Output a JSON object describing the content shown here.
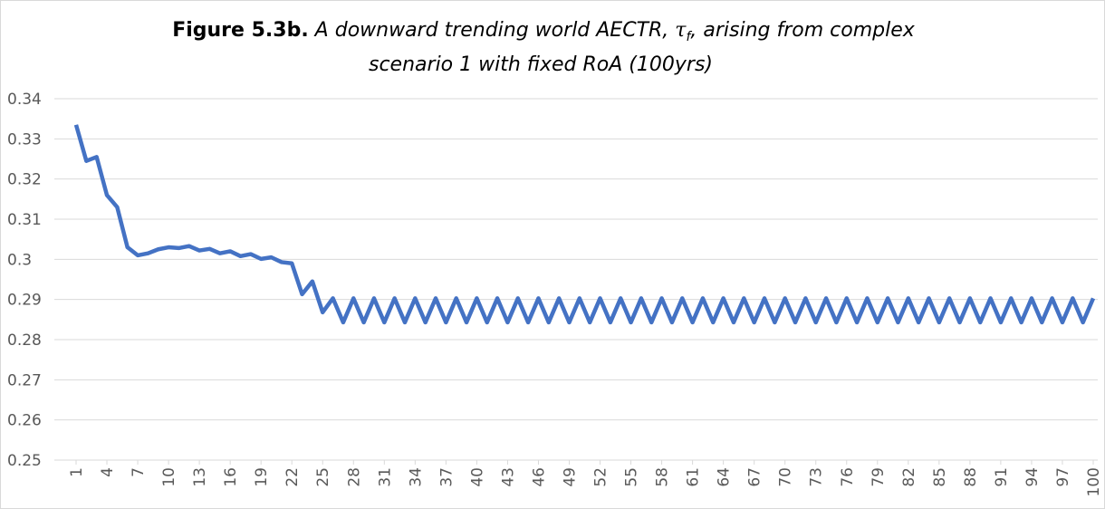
{
  "chart_data": {
    "type": "line",
    "title": {
      "label": "Figure 5.3b.",
      "text1": " A downward trending world AECTR, ",
      "symbol": "τ",
      "subscript": "f",
      "text2": ", arising from complex",
      "line2": "scenario 1 with fixed RoA (100yrs)"
    },
    "x": [
      1,
      2,
      3,
      4,
      5,
      6,
      7,
      8,
      9,
      10,
      11,
      12,
      13,
      14,
      15,
      16,
      17,
      18,
      19,
      20,
      21,
      22,
      23,
      24,
      25,
      26,
      27,
      28,
      29,
      30,
      31,
      32,
      33,
      34,
      35,
      36,
      37,
      38,
      39,
      40,
      41,
      42,
      43,
      44,
      45,
      46,
      47,
      48,
      49,
      50,
      51,
      52,
      53,
      54,
      55,
      56,
      57,
      58,
      59,
      60,
      61,
      62,
      63,
      64,
      65,
      66,
      67,
      68,
      69,
      70,
      71,
      72,
      73,
      74,
      75,
      76,
      77,
      78,
      79,
      80,
      81,
      82,
      83,
      84,
      85,
      86,
      87,
      88,
      89,
      90,
      91,
      92,
      93,
      94,
      95,
      96,
      97,
      98,
      99,
      100
    ],
    "series": [
      {
        "color": "#4472c4",
        "values": [
          0.3335,
          0.3245,
          0.3255,
          0.316,
          0.313,
          0.303,
          0.301,
          0.3015,
          0.3025,
          0.303,
          0.3028,
          0.3033,
          0.3022,
          0.3026,
          0.3015,
          0.302,
          0.3008,
          0.3013,
          0.3001,
          0.3005,
          0.2993,
          0.299,
          0.2913,
          0.2945,
          0.2868,
          0.2903,
          0.2843,
          0.2903,
          0.2843,
          0.2903,
          0.2843,
          0.2903,
          0.2843,
          0.2903,
          0.2843,
          0.2903,
          0.2843,
          0.2903,
          0.2843,
          0.2903,
          0.2843,
          0.2903,
          0.2843,
          0.2903,
          0.2843,
          0.2903,
          0.2843,
          0.2903,
          0.2843,
          0.2903,
          0.2843,
          0.2903,
          0.2843,
          0.2903,
          0.2843,
          0.2903,
          0.2843,
          0.2903,
          0.2843,
          0.2903,
          0.2843,
          0.2903,
          0.2843,
          0.2903,
          0.2843,
          0.2903,
          0.2843,
          0.2903,
          0.2843,
          0.2903,
          0.2843,
          0.2903,
          0.2843,
          0.2903,
          0.2843,
          0.2903,
          0.2843,
          0.2903,
          0.2843,
          0.2903,
          0.2843,
          0.2903,
          0.2843,
          0.2903,
          0.2843,
          0.2903,
          0.2843,
          0.2903,
          0.2843,
          0.2903,
          0.2843,
          0.2903,
          0.2843,
          0.2903,
          0.2843,
          0.2903,
          0.2843,
          0.2903,
          0.2843,
          0.2903
        ]
      }
    ],
    "xlim": [
      1,
      100
    ],
    "xticks": [
      1,
      4,
      7,
      10,
      13,
      16,
      19,
      22,
      25,
      28,
      31,
      34,
      37,
      40,
      43,
      46,
      49,
      52,
      55,
      58,
      61,
      64,
      67,
      70,
      73,
      76,
      79,
      82,
      85,
      88,
      91,
      94,
      97,
      100
    ],
    "ylim": [
      0.25,
      0.34
    ],
    "yticks": [
      0.25,
      0.26,
      0.27,
      0.28,
      0.29,
      0.3,
      0.31,
      0.32,
      0.33,
      0.34
    ],
    "grid": true
  }
}
